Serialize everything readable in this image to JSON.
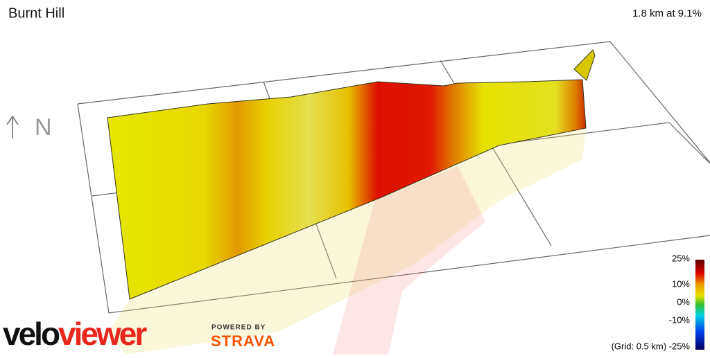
{
  "header": {
    "title": "Burnt Hill",
    "stat": "1.8 km at 9.1%"
  },
  "compass": "N",
  "legend": {
    "labels": [
      "25%",
      "10%",
      "0%",
      "-10%"
    ],
    "grid_note": "(Grid: 0.5 km) -25%"
  },
  "branding": {
    "logo_parts": [
      "velo",
      "viewer"
    ],
    "powered_by": "POWERED BY",
    "partner": "STRAVA"
  }
}
